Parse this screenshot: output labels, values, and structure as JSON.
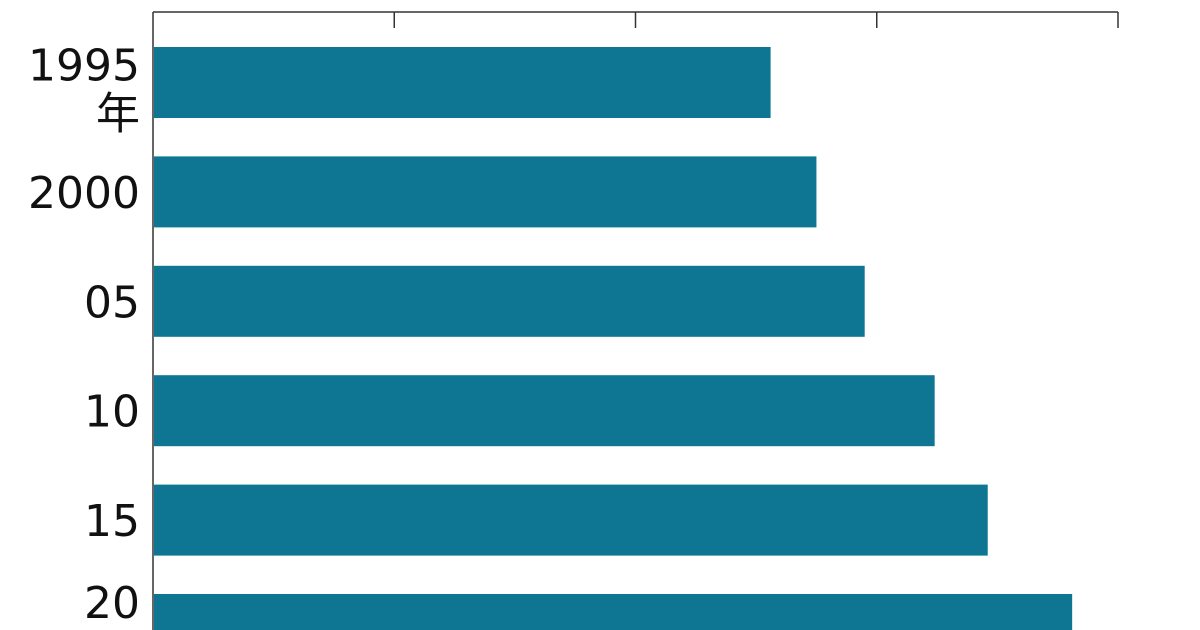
{
  "chart_data": {
    "type": "bar",
    "orientation": "horizontal",
    "title": "",
    "xlabel": "",
    "ylabel": "",
    "categories": [
      "1995",
      "2000",
      "05",
      "10",
      "15",
      "20"
    ],
    "category_unit": "年",
    "values": [
      2.56,
      2.75,
      2.95,
      3.24,
      3.46,
      3.81
    ],
    "xlim": [
      0,
      4
    ],
    "x_ticks": [
      0,
      1,
      2,
      3,
      4
    ],
    "x_tick_labels_shown": false,
    "axis_position": "top",
    "grid": false,
    "bar_color": "#0e7592"
  }
}
